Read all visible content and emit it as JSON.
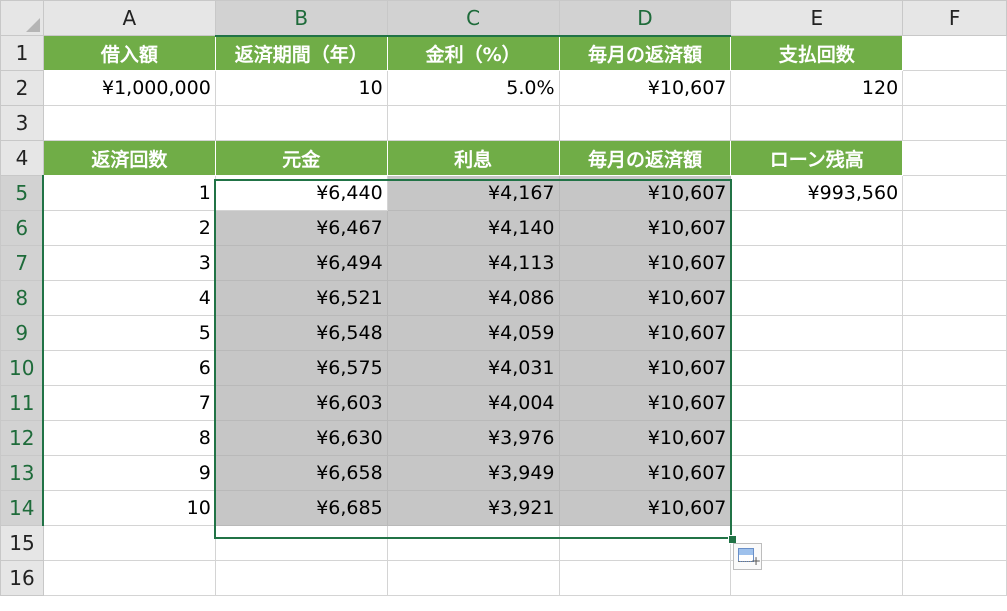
{
  "columns": [
    "A",
    "B",
    "C",
    "D",
    "E",
    "F"
  ],
  "rows": [
    "1",
    "2",
    "3",
    "4",
    "5",
    "6",
    "7",
    "8",
    "9",
    "10",
    "11",
    "12",
    "13",
    "14",
    "15",
    "16"
  ],
  "header_row1": {
    "A": "借入額",
    "B": "返済期間（年）",
    "C": "金利（%）",
    "D": "毎月の返済額",
    "E": "支払回数"
  },
  "values_row2": {
    "A": "¥1,000,000",
    "B": "10",
    "C": "5.0%",
    "D": "¥10,607",
    "E": "120"
  },
  "header_row4": {
    "A": "返済回数",
    "B": "元金",
    "C": "利息",
    "D": "毎月の返済額",
    "E": "ローン残高"
  },
  "table": [
    {
      "n": "1",
      "principal": "¥6,440",
      "interest": "¥4,167",
      "payment": "¥10,607",
      "balance": "¥993,560"
    },
    {
      "n": "2",
      "principal": "¥6,467",
      "interest": "¥4,140",
      "payment": "¥10,607",
      "balance": ""
    },
    {
      "n": "3",
      "principal": "¥6,494",
      "interest": "¥4,113",
      "payment": "¥10,607",
      "balance": ""
    },
    {
      "n": "4",
      "principal": "¥6,521",
      "interest": "¥4,086",
      "payment": "¥10,607",
      "balance": ""
    },
    {
      "n": "5",
      "principal": "¥6,548",
      "interest": "¥4,059",
      "payment": "¥10,607",
      "balance": ""
    },
    {
      "n": "6",
      "principal": "¥6,575",
      "interest": "¥4,031",
      "payment": "¥10,607",
      "balance": ""
    },
    {
      "n": "7",
      "principal": "¥6,603",
      "interest": "¥4,004",
      "payment": "¥10,607",
      "balance": ""
    },
    {
      "n": "8",
      "principal": "¥6,630",
      "interest": "¥3,976",
      "payment": "¥10,607",
      "balance": ""
    },
    {
      "n": "9",
      "principal": "¥6,658",
      "interest": "¥3,949",
      "payment": "¥10,607",
      "balance": ""
    },
    {
      "n": "10",
      "principal": "¥6,685",
      "interest": "¥3,921",
      "payment": "¥10,607",
      "balance": ""
    }
  ],
  "selection": {
    "range": "B5:D14",
    "active_cell": "B5"
  },
  "icons": {
    "corner": "select-all-icon",
    "quick_analysis": "quick-analysis-icon"
  },
  "colors": {
    "header_fill": "#70ad47",
    "header_text": "#ffffff",
    "selection_border": "#217346",
    "selection_fill": "#c6c6c6"
  }
}
